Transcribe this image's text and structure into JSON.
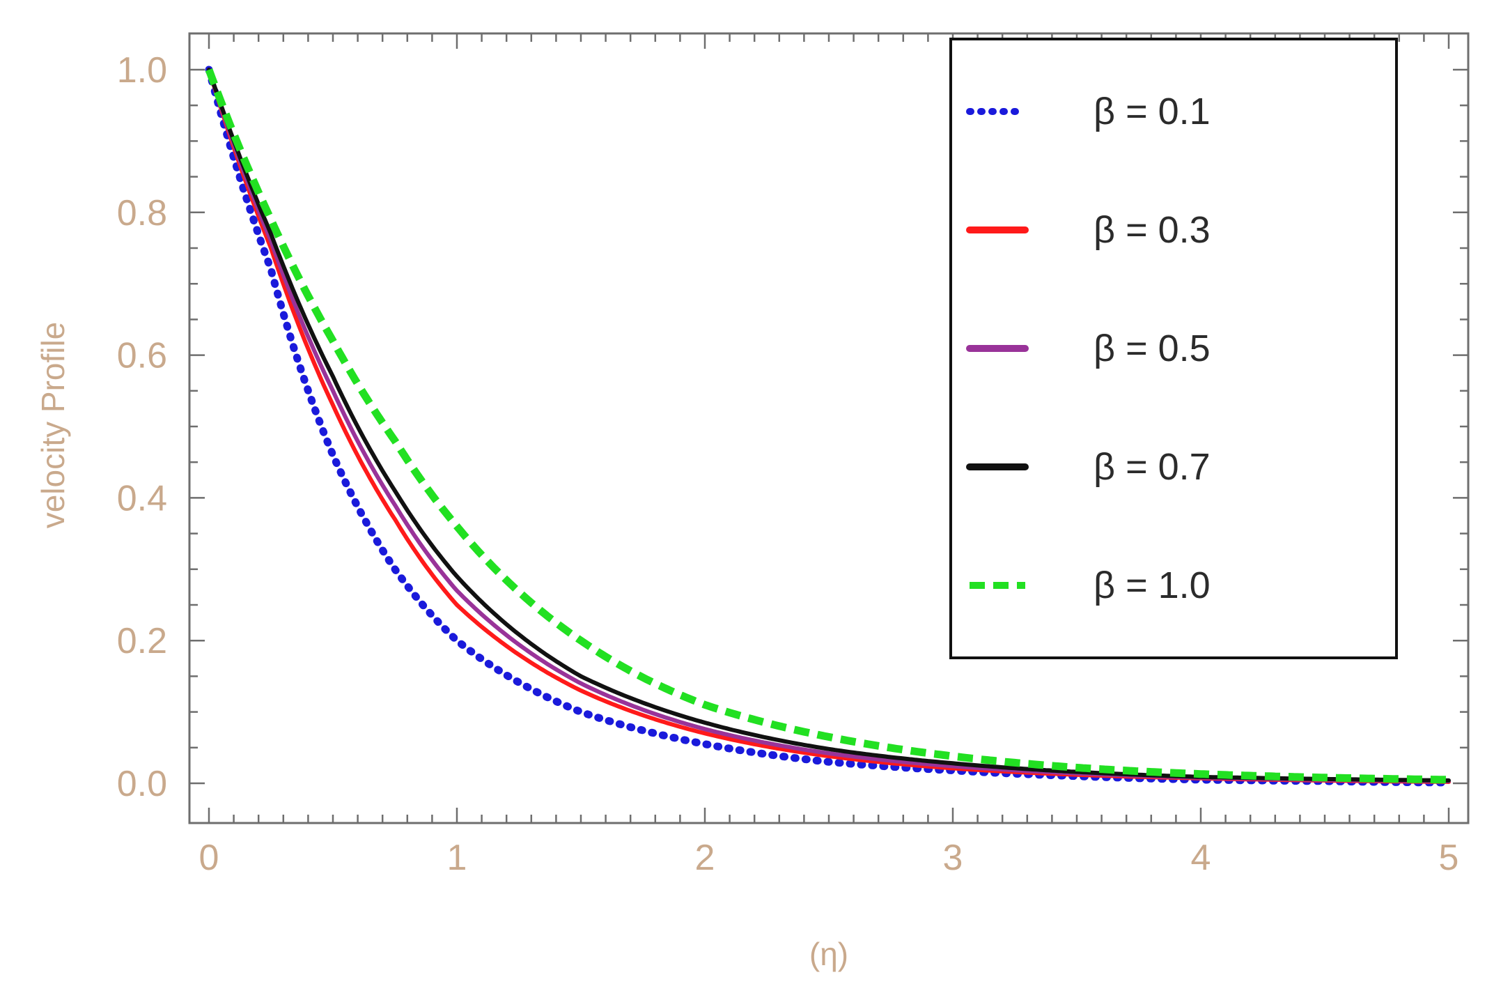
{
  "chart_data": {
    "type": "line",
    "title": "",
    "xlabel": "(η)",
    "ylabel": "velocity  Profile",
    "xlim": [
      0,
      5
    ],
    "ylim": [
      -0.05,
      1.05
    ],
    "x_ticks": [
      "0",
      "1",
      "2",
      "3",
      "4",
      "5"
    ],
    "y_ticks": [
      "0.0",
      "0.2",
      "0.4",
      "0.6",
      "0.8",
      "1.0"
    ],
    "legend_position": "top-right",
    "grid": false,
    "x": [
      0,
      0.25,
      0.5,
      0.75,
      1.0,
      1.5,
      2.0,
      2.5,
      3.0,
      3.5,
      4.0,
      4.5,
      5.0
    ],
    "series": [
      {
        "name": "β = 0.1",
        "color": "#1a1adb",
        "style": "dotted",
        "values": [
          1.0,
          0.72,
          0.46,
          0.3,
          0.2,
          0.1,
          0.055,
          0.03,
          0.018,
          0.01,
          0.005,
          0.003,
          0.001
        ]
      },
      {
        "name": "β = 0.3",
        "color": "#ff1a1a",
        "style": "solid",
        "values": [
          1.0,
          0.75,
          0.53,
          0.37,
          0.25,
          0.13,
          0.07,
          0.038,
          0.021,
          0.012,
          0.007,
          0.004,
          0.002
        ]
      },
      {
        "name": "β = 0.5",
        "color": "#993399",
        "style": "solid",
        "values": [
          1.0,
          0.76,
          0.55,
          0.39,
          0.27,
          0.14,
          0.076,
          0.042,
          0.024,
          0.014,
          0.008,
          0.005,
          0.003
        ]
      },
      {
        "name": "β = 0.7",
        "color": "#111111",
        "style": "solid",
        "values": [
          1.0,
          0.77,
          0.57,
          0.41,
          0.29,
          0.15,
          0.085,
          0.048,
          0.028,
          0.016,
          0.009,
          0.006,
          0.004
        ]
      },
      {
        "name": "β = 1.0",
        "color": "#22e022",
        "style": "dashed",
        "values": [
          1.0,
          0.79,
          0.62,
          0.48,
          0.36,
          0.2,
          0.11,
          0.065,
          0.038,
          0.022,
          0.013,
          0.008,
          0.005
        ]
      }
    ]
  }
}
